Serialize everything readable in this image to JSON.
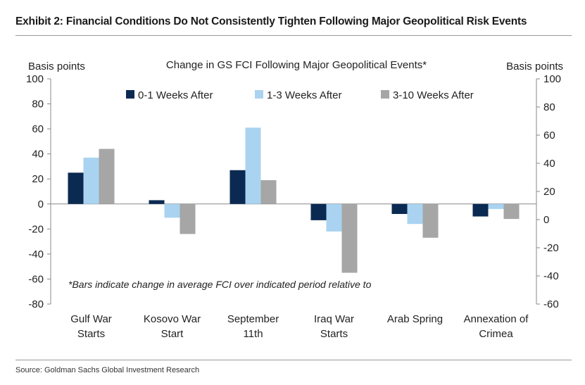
{
  "exhibit_title": "Exhibit 2: Financial Conditions Do Not Consistently Tighten Following Major Geopolitical Risk Events",
  "source": "Source: Goldman Sachs Global Investment Research",
  "colors": {
    "series_0_1": "#0b2a52",
    "series_1_3": "#a9d3f0",
    "series_3_10": "#a6a6a6",
    "axis": "#888888"
  },
  "chart_data": {
    "type": "bar",
    "title": "Change in GS FCI Following Major Geopolitical Events*",
    "ylabel_left": "Basis points",
    "ylabel_right": "Basis points",
    "categories": [
      [
        "Gulf War",
        "Starts"
      ],
      [
        "Kosovo War",
        "Start"
      ],
      [
        "September",
        "11th"
      ],
      [
        "Iraq War",
        "Starts"
      ],
      [
        "Arab Spring"
      ],
      [
        "Annexation of",
        "Crimea"
      ]
    ],
    "series": [
      {
        "name": "0-1 Weeks After",
        "values": [
          25,
          3,
          27,
          -13,
          -8,
          -10
        ]
      },
      {
        "name": "1-3 Weeks After",
        "values": [
          37,
          -11,
          61,
          -22,
          -16,
          -4
        ]
      },
      {
        "name": "3-10 Weeks After",
        "values": [
          44,
          -24,
          19,
          -55,
          -27,
          -12
        ]
      }
    ],
    "ylim_left": [
      -80,
      100
    ],
    "yticks_left": [
      100,
      80,
      60,
      40,
      20,
      0,
      -20,
      -40,
      -60,
      -80
    ],
    "ylim_right": [
      -60,
      100
    ],
    "yticks_right": [
      100,
      80,
      60,
      40,
      20,
      0,
      -20,
      -40,
      -60
    ],
    "legend_position": "top-center",
    "grid": false,
    "annotation": "*Bars indicate change in average FCI over indicated period relative to"
  }
}
